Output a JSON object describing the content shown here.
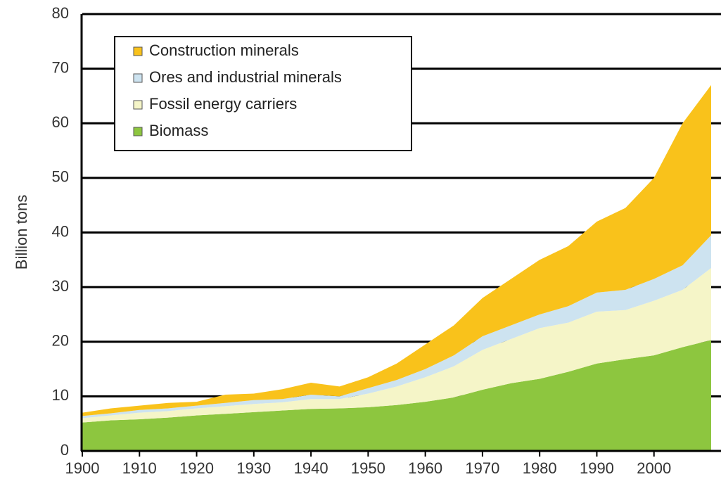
{
  "chart_data": {
    "type": "stacked_area",
    "y_label": "Billion tons",
    "x": [
      1900,
      1905,
      1910,
      1915,
      1920,
      1925,
      1930,
      1935,
      1940,
      1945,
      1950,
      1955,
      1960,
      1965,
      1970,
      1975,
      1980,
      1985,
      1990,
      1995,
      2000,
      2005,
      2010
    ],
    "series": [
      {
        "name": "Biomass",
        "color": "#8dc63f",
        "values": [
          5.2,
          5.6,
          5.8,
          6.1,
          6.5,
          6.8,
          7.1,
          7.4,
          7.7,
          7.8,
          8.0,
          8.4,
          9.0,
          9.8,
          11.2,
          12.4,
          13.2,
          14.5,
          16.0,
          16.8,
          17.5,
          19.0,
          20.3
        ]
      },
      {
        "name": "Fossil energy carriers",
        "color": "#f5f5c8",
        "values": [
          0.8,
          0.9,
          1.2,
          1.2,
          1.3,
          1.4,
          1.5,
          1.5,
          1.8,
          1.7,
          2.5,
          3.4,
          4.5,
          5.7,
          7.3,
          8.1,
          9.3,
          9.0,
          9.5,
          9.0,
          10.0,
          10.5,
          13.2
        ]
      },
      {
        "name": "Ores and industrial minerals",
        "color": "#cde3f0",
        "values": [
          0.4,
          0.4,
          0.5,
          0.5,
          0.5,
          0.6,
          0.7,
          0.6,
          0.8,
          0.5,
          1.0,
          1.2,
          1.5,
          2.0,
          2.5,
          2.5,
          2.5,
          3.0,
          3.5,
          3.7,
          4.0,
          4.5,
          6.0
        ]
      },
      {
        "name": "Construction minerals",
        "color": "#f9c21b",
        "values": [
          0.6,
          0.9,
          0.8,
          1.0,
          0.7,
          1.5,
          1.2,
          1.8,
          2.2,
          1.8,
          2.0,
          3.0,
          4.5,
          5.5,
          7.0,
          8.5,
          10.0,
          11.0,
          13.0,
          15.0,
          18.5,
          26.0,
          27.5
        ]
      }
    ],
    "xlim": [
      1900,
      2010
    ],
    "xticks": [
      1900,
      1910,
      1920,
      1930,
      1940,
      1950,
      1960,
      1970,
      1980,
      1990,
      2000
    ],
    "ylim": [
      0,
      80
    ],
    "yticks": [
      0,
      10,
      20,
      30,
      40,
      50,
      60,
      70,
      80
    ],
    "grid": true,
    "legend": "upper left"
  }
}
